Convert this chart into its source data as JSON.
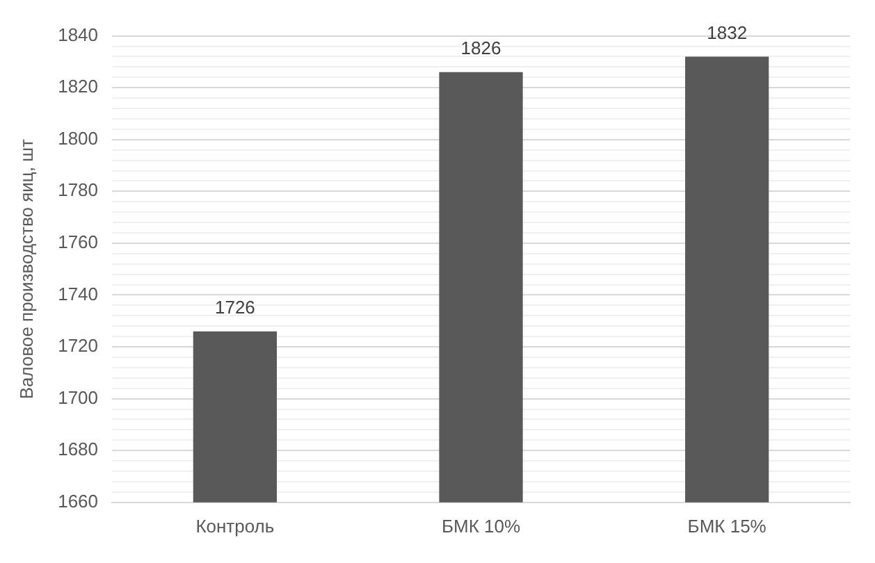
{
  "chart_data": {
    "type": "bar",
    "ylabel": "Валовое производство яиц, шт",
    "categories": [
      "Контроль",
      "БМК 10%",
      "БМК 15%"
    ],
    "values": [
      1726,
      1826,
      1832
    ],
    "color": "#595959",
    "ylim": [
      1660,
      1840
    ],
    "yticks": [
      1660,
      {
        "value": 1664,
        "label": null
      },
      {
        "value": 1668,
        "label": null
      },
      {
        "value": 1672,
        "label": null
      },
      {
        "value": 1676,
        "label": null
      },
      1680,
      {
        "value": 1684,
        "label": null
      },
      {
        "value": 1688,
        "label": null
      },
      {
        "value": 1692,
        "label": null
      },
      {
        "value": 1696,
        "label": null
      },
      1700,
      {
        "value": 1704,
        "label": null
      },
      {
        "value": 1708,
        "label": null
      },
      {
        "value": 1712,
        "label": null
      },
      {
        "value": 1716,
        "label": null
      },
      1720,
      {
        "value": 1724,
        "label": null
      },
      {
        "value": 1728,
        "label": null
      },
      {
        "value": 1732,
        "label": null
      },
      {
        "value": 1736,
        "label": null
      },
      1740,
      {
        "value": 1744,
        "label": null
      },
      {
        "value": 1748,
        "label": null
      },
      {
        "value": 1752,
        "label": null
      },
      {
        "value": 1756,
        "label": null
      },
      1760,
      {
        "value": 1764,
        "label": null
      },
      {
        "value": 1768,
        "label": null
      },
      {
        "value": 1772,
        "label": null
      },
      {
        "value": 1776,
        "label": null
      },
      1780,
      {
        "value": 1784,
        "label": null
      },
      {
        "value": 1788,
        "label": null
      },
      {
        "value": 1792,
        "label": null
      },
      {
        "value": 1796,
        "label": null
      },
      1800,
      {
        "value": 1804,
        "label": null
      },
      {
        "value": 1808,
        "label": null
      },
      {
        "value": 1812,
        "label": null
      },
      {
        "value": 1816,
        "label": null
      },
      1820,
      {
        "value": 1824,
        "label": null
      },
      {
        "value": 1828,
        "label": null
      },
      {
        "value": 1832,
        "label": null
      },
      {
        "value": 1836,
        "label": null
      },
      1840
    ],
    "grid": "y",
    "data_labels": true
  }
}
